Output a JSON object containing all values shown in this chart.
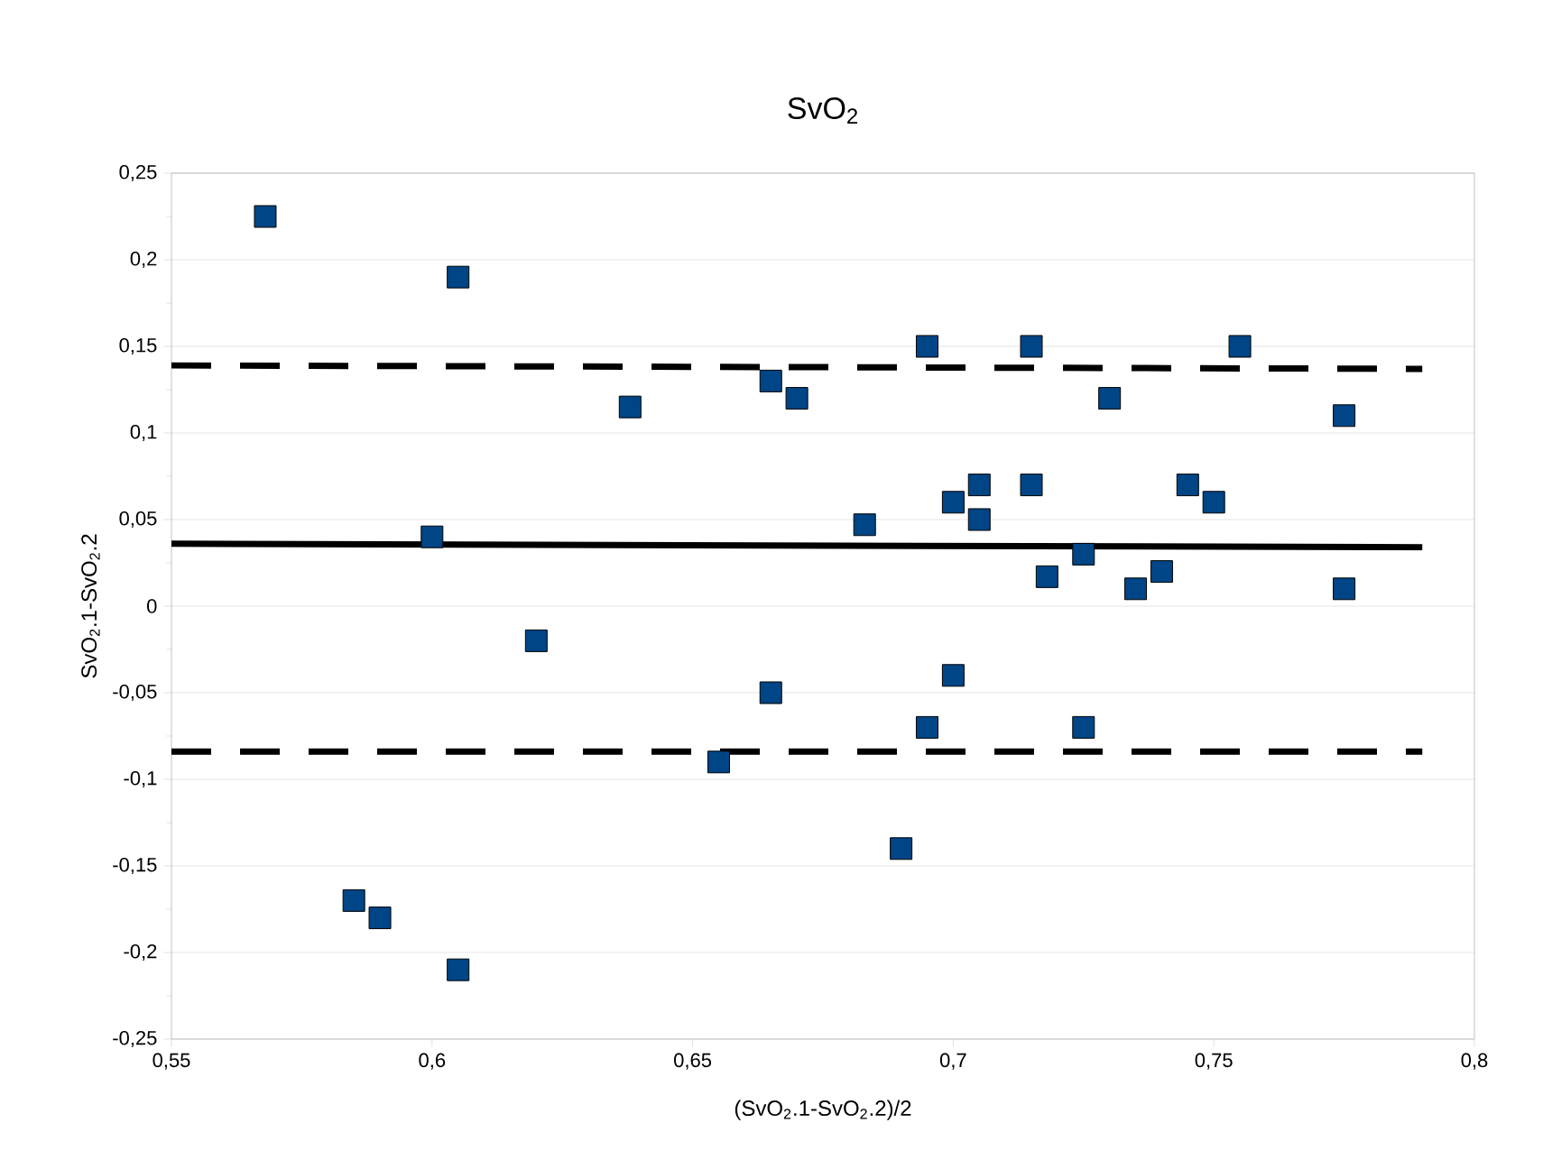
{
  "chart_data": {
    "type": "scatter",
    "title": "SvO$_{2}$",
    "xlabel": "(SvO$_{2}$.1-SvO$_{2}$.2)/2",
    "ylabel": "SvO$_{2}$.1-SvO$_{2}$.2",
    "xlim": [
      0.55,
      0.8
    ],
    "ylim": [
      -0.25,
      0.25
    ],
    "xticks": [
      {
        "value": 0.55,
        "label": "0,55"
      },
      {
        "value": 0.6,
        "label": "0,6"
      },
      {
        "value": 0.65,
        "label": "0,65"
      },
      {
        "value": 0.7,
        "label": "0,7"
      },
      {
        "value": 0.75,
        "label": "0,75"
      },
      {
        "value": 0.8,
        "label": "0,8"
      }
    ],
    "yticks": [
      {
        "value": -0.25,
        "label": "-0,25"
      },
      {
        "value": -0.2,
        "label": "-0,2"
      },
      {
        "value": -0.15,
        "label": "-0,15"
      },
      {
        "value": -0.1,
        "label": "-0,1"
      },
      {
        "value": -0.05,
        "label": "-0,05"
      },
      {
        "value": 0,
        "label": "0"
      },
      {
        "value": 0.05,
        "label": "0,05"
      },
      {
        "value": 0.1,
        "label": "0,1"
      },
      {
        "value": 0.15,
        "label": "0,15"
      },
      {
        "value": 0.2,
        "label": "0,2"
      },
      {
        "value": 0.25,
        "label": "0,25"
      }
    ],
    "grid": "y",
    "series": [
      {
        "color": "#004586",
        "marker": "square",
        "x": [
          0.568,
          0.605,
          0.6,
          0.62,
          0.638,
          0.655,
          0.665,
          0.67,
          0.665,
          0.683,
          0.69,
          0.695,
          0.695,
          0.7,
          0.7,
          0.705,
          0.705,
          0.715,
          0.715,
          0.718,
          0.725,
          0.725,
          0.73,
          0.735,
          0.74,
          0.745,
          0.75,
          0.755,
          0.775,
          0.775,
          0.585,
          0.59,
          0.605
        ],
        "values": [
          0.225,
          0.19,
          0.04,
          -0.02,
          0.115,
          -0.09,
          0.13,
          0.12,
          -0.05,
          0.047,
          -0.14,
          0.15,
          -0.07,
          0.06,
          -0.04,
          0.07,
          0.05,
          0.15,
          0.07,
          0.017,
          0.03,
          -0.07,
          0.12,
          0.01,
          0.02,
          0.07,
          0.06,
          0.15,
          0.11,
          0.01,
          -0.17,
          -0.18,
          -0.21
        ]
      },
      {
        "type": "line",
        "marker": "none",
        "color": "#000000",
        "line_style": "dashed",
        "x": [
          0.55,
          0.79
        ],
        "values": [
          0.139,
          0.137
        ]
      },
      {
        "type": "line",
        "marker": "none",
        "color": "#000000",
        "line_style": "solid",
        "x": [
          0.55,
          0.79
        ],
        "values": [
          0.036,
          0.034
        ]
      },
      {
        "type": "line",
        "marker": "none",
        "color": "#000000",
        "line_style": "dashed",
        "x": [
          0.55,
          0.79
        ],
        "values": [
          -0.084,
          -0.084
        ]
      }
    ]
  }
}
